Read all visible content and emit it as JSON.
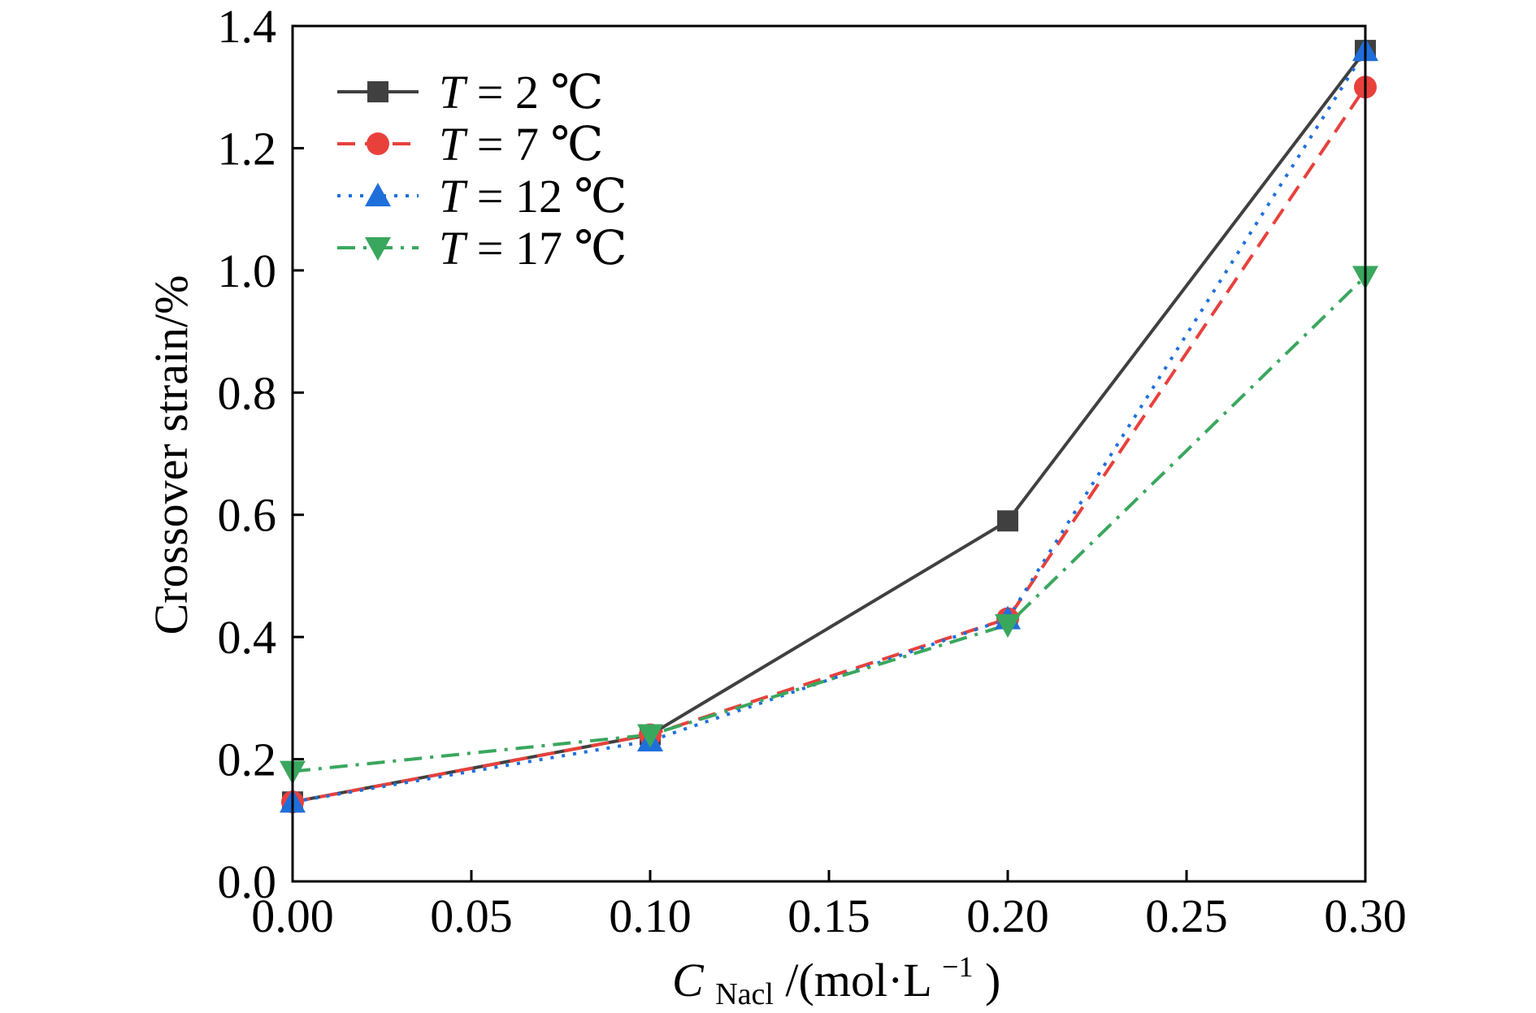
{
  "chart_data": {
    "type": "line",
    "title": "",
    "xlabel": {
      "main": "C",
      "sub": "Nacl",
      "rest": "/(mol·L",
      "sup": "−1",
      "close": ")"
    },
    "ylabel": "Crossover strain/%",
    "x": [
      0.0,
      0.1,
      0.2,
      0.3
    ],
    "xlim": [
      0.0,
      0.3
    ],
    "ylim": [
      0.0,
      1.4
    ],
    "xticks": [
      "0.00",
      "0.05",
      "0.10",
      "0.15",
      "0.20",
      "0.25",
      "0.30"
    ],
    "yticks": [
      "0.0",
      "0.2",
      "0.4",
      "0.6",
      "0.8",
      "1.0",
      "1.2",
      "1.4"
    ],
    "grid": false,
    "legend_position": "top-left",
    "series": [
      {
        "name": "T = 2 ℃",
        "var": "T",
        "rest": " = 2 ℃",
        "values": [
          0.13,
          0.24,
          0.59,
          1.36
        ],
        "color": "#404040",
        "marker": "square",
        "dash": "solid"
      },
      {
        "name": "T = 7 ℃",
        "var": "T",
        "rest": " = 7 ℃",
        "values": [
          0.13,
          0.24,
          0.43,
          1.3
        ],
        "color": "#e8413c",
        "marker": "circle",
        "dash": "dashed"
      },
      {
        "name": "T = 12 ℃",
        "var": "T",
        "rest": " = 12 ℃",
        "values": [
          0.13,
          0.23,
          0.43,
          1.36
        ],
        "color": "#1f6fdb",
        "marker": "triangle-up",
        "dash": "dotted"
      },
      {
        "name": "T = 17 ℃",
        "var": "T",
        "rest": " = 17 ℃",
        "values": [
          0.18,
          0.24,
          0.42,
          0.99
        ],
        "color": "#3aa75e",
        "marker": "triangle-down",
        "dash": "dashdot"
      }
    ]
  }
}
